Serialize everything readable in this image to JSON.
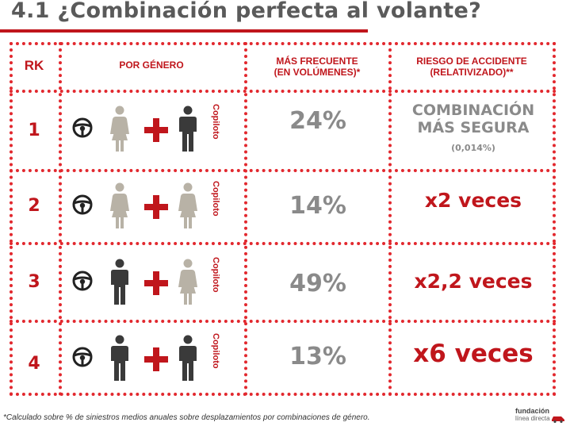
{
  "title": "4.1 ¿Combinación perfecta al volante?",
  "headers": {
    "rank": "RK",
    "gender": "POR GÉNERO",
    "frequent_line1": "MÁS FRECUENTE",
    "frequent_line2": "(EN VOLÚMENES)*",
    "risk_line1": "RIESGO DE ACCIDENTE",
    "risk_line2": "(RELATIVIZADO)**"
  },
  "rows": [
    {
      "rank": "1",
      "driver": "woman",
      "copilot": "man",
      "copilot_label": "Copiloto",
      "pct": "24%",
      "risk_line1": "COMBINACIÓN",
      "risk_line2": "MÁS SEGURA",
      "risk_sub": "(0,014%)"
    },
    {
      "rank": "2",
      "driver": "woman",
      "copilot": "woman",
      "copilot_label": "Copiloto",
      "pct": "14%",
      "risk": "x2 veces"
    },
    {
      "rank": "3",
      "driver": "man",
      "copilot": "woman",
      "copilot_label": "Copiloto",
      "pct": "49%",
      "risk": "x2,2 veces"
    },
    {
      "rank": "4",
      "driver": "man",
      "copilot": "man",
      "copilot_label": "Copiloto",
      "pct": "13%",
      "risk": "x6 veces"
    }
  ],
  "icons": {
    "wheel": "steering-wheel-icon",
    "plus": "plus-icon",
    "man": "man-icon",
    "woman": "woman-icon"
  },
  "colors": {
    "accent": "#c0161c",
    "grey_text": "#8a8a8a",
    "man": "#3a3a3a",
    "woman": "#b8b2a6"
  },
  "footnote": "*Calculado sobre % de siniestros medios anuales sobre desplazamientos por combinaciones de género.",
  "logo": {
    "line1": "fundación",
    "line2": "línea directa"
  }
}
